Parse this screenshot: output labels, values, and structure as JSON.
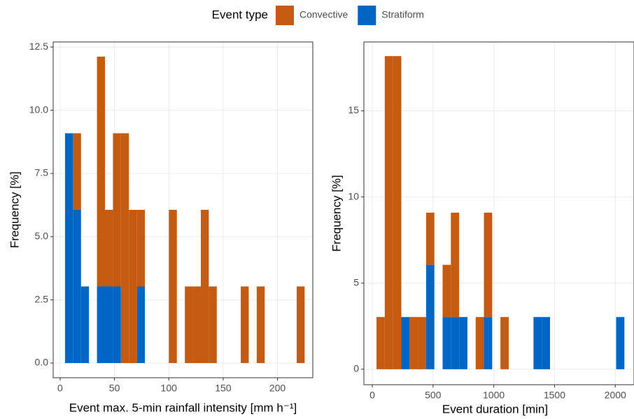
{
  "legend_title": "Event type",
  "chart_data": [
    {
      "type": "histogram",
      "stacked": true,
      "grid": true,
      "x_label": "Event max. 5-min rainfall intensity [mm h⁻¹]",
      "y_label": "Frequency [%]",
      "bins": [
        4.5,
        11.85,
        19.2,
        26.55,
        33.9,
        41.25,
        48.6,
        55.95,
        63.3,
        70.65,
        78,
        85.35,
        92.7,
        100.05,
        107.4,
        114.75,
        122.1,
        129.45,
        136.8,
        144.15,
        151.5,
        158.85,
        166.2,
        173.55,
        180.9,
        188.25,
        195.6,
        202.95,
        210.3,
        217.65,
        225
      ],
      "series": [
        {
          "name": "Convective",
          "color": "#c55a11",
          "values": [
            0,
            3.03,
            0,
            0,
            9.09,
            3.03,
            6.06,
            9.09,
            6.06,
            3.03,
            0,
            0,
            0,
            6.06,
            0,
            3.03,
            3.03,
            6.06,
            3.03,
            0,
            0,
            0,
            3.03,
            0,
            3.03,
            0,
            0,
            0,
            0,
            3.03
          ]
        },
        {
          "name": "Stratiform",
          "color": "#0066c6",
          "values": [
            9.09,
            6.06,
            3.03,
            0,
            3.03,
            3.03,
            3.03,
            0,
            0,
            3.03,
            0,
            0,
            0,
            0,
            0,
            0,
            0,
            0,
            0,
            0,
            0,
            0,
            0,
            0,
            0,
            0,
            0,
            0,
            0,
            0
          ]
        }
      ],
      "xlim": [
        -6.4,
        232.5
      ],
      "xticks": [
        0,
        50,
        100,
        150,
        200
      ],
      "ylim": [
        -0.58,
        12.7
      ],
      "yticks": [
        {
          "value": 0,
          "label": "0.0"
        },
        {
          "value": 2.5,
          "label": "2.5"
        },
        {
          "value": 5,
          "label": "5.0"
        },
        {
          "value": 7.5,
          "label": "7.5"
        },
        {
          "value": 10,
          "label": "10.0"
        },
        {
          "value": 12.5,
          "label": "12.5"
        }
      ]
    },
    {
      "type": "histogram",
      "stacked": true,
      "grid": true,
      "x_label": "Event duration [min]",
      "y_label": "Frequency [%]",
      "bins": [
        35,
        103,
        171,
        239,
        307,
        375,
        443,
        511,
        579,
        647,
        715,
        783,
        851,
        919,
        987,
        1055,
        1123,
        1191,
        1259,
        1327,
        1395,
        1463,
        1531,
        1599,
        1667,
        1735,
        1803,
        1871,
        1939,
        2007,
        2075
      ],
      "series": [
        {
          "name": "Convective",
          "color": "#c55a11",
          "values": [
            3.03,
            18.18,
            18.18,
            0,
            3.03,
            3.03,
            3.03,
            0,
            3.03,
            6.06,
            0,
            0,
            3.03,
            6.06,
            0,
            3.03,
            0,
            0,
            0,
            0,
            0,
            0,
            0,
            0,
            0,
            0,
            0,
            0,
            0,
            0
          ]
        },
        {
          "name": "Stratiform",
          "color": "#0066c6",
          "values": [
            0,
            0,
            0,
            3.03,
            0,
            0,
            6.06,
            0,
            3.03,
            3.03,
            3.03,
            0,
            0,
            3.03,
            0,
            0,
            0,
            0,
            0,
            3.03,
            3.03,
            0,
            0,
            0,
            0,
            0,
            0,
            0,
            0,
            3.03
          ]
        }
      ],
      "xlim": [
        -69,
        2154
      ],
      "xticks": [
        0,
        500,
        1000,
        1500,
        2000
      ],
      "ylim": [
        -0.9,
        19
      ],
      "yticks": [
        0,
        5,
        10,
        15
      ]
    }
  ]
}
